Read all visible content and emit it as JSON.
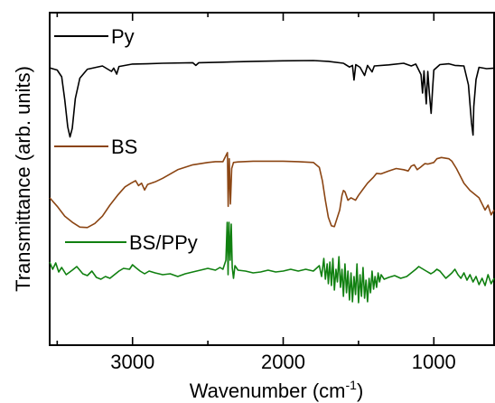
{
  "chart_data": {
    "type": "line",
    "xlabel": "Wavenumber (cm",
    "xlabel_sup": "-1",
    "xlabel_tail": ")",
    "ylabel": "Transmittance (arb. units)",
    "xlim": [
      3550,
      600
    ],
    "x_reversed": true,
    "x_ticks": [
      3000,
      2000,
      1000
    ],
    "x_tick_labels": [
      "3000",
      "2000",
      "1000"
    ],
    "y_ticks": "none (arbitrary units)",
    "grid": false,
    "legend_placement": "inline labels near each trace (left side)",
    "series": [
      {
        "name": "Py",
        "color": "#000000",
        "points": [
          [
            3550,
            0.37
          ],
          [
            3500,
            0.45
          ],
          [
            3470,
            0.7
          ],
          [
            3450,
            1.55
          ],
          [
            3430,
            2.55
          ],
          [
            3415,
            2.92
          ],
          [
            3400,
            2.6
          ],
          [
            3380,
            1.5
          ],
          [
            3350,
            0.75
          ],
          [
            3300,
            0.42
          ],
          [
            3200,
            0.3
          ],
          [
            3140,
            0.5
          ],
          [
            3125,
            0.38
          ],
          [
            3105,
            0.6
          ],
          [
            3090,
            0.32
          ],
          [
            3000,
            0.23
          ],
          [
            2900,
            0.22
          ],
          [
            2800,
            0.2
          ],
          [
            2600,
            0.18
          ],
          [
            2580,
            0.28
          ],
          [
            2560,
            0.18
          ],
          [
            2400,
            0.16
          ],
          [
            2200,
            0.13
          ],
          [
            2000,
            0.11
          ],
          [
            1800,
            0.1
          ],
          [
            1700,
            0.13
          ],
          [
            1600,
            0.2
          ],
          [
            1560,
            0.34
          ],
          [
            1540,
            0.28
          ],
          [
            1530,
            0.82
          ],
          [
            1518,
            0.25
          ],
          [
            1490,
            0.35
          ],
          [
            1460,
            0.65
          ],
          [
            1440,
            0.28
          ],
          [
            1410,
            0.52
          ],
          [
            1395,
            0.3
          ],
          [
            1300,
            0.26
          ],
          [
            1200,
            0.2
          ],
          [
            1150,
            0.3
          ],
          [
            1120,
            0.23
          ],
          [
            1085,
            0.62
          ],
          [
            1075,
            1.3
          ],
          [
            1065,
            0.48
          ],
          [
            1050,
            1.7
          ],
          [
            1040,
            0.5
          ],
          [
            1030,
            1.3
          ],
          [
            1018,
            2.05
          ],
          [
            1008,
            1.1
          ],
          [
            1000,
            0.45
          ],
          [
            960,
            0.25
          ],
          [
            900,
            0.22
          ],
          [
            860,
            0.28
          ],
          [
            800,
            0.3
          ],
          [
            770,
            1.0
          ],
          [
            750,
            2.4
          ],
          [
            740,
            2.85
          ],
          [
            735,
            1.8
          ],
          [
            720,
            0.8
          ],
          [
            700,
            0.35
          ],
          [
            650,
            0.4
          ],
          [
            600,
            0.38
          ]
        ]
      },
      {
        "name": "BS",
        "color": "#8b4513",
        "points": [
          [
            3550,
            1.7
          ],
          [
            3500,
            2.05
          ],
          [
            3450,
            2.45
          ],
          [
            3400,
            2.7
          ],
          [
            3350,
            2.9
          ],
          [
            3300,
            2.92
          ],
          [
            3250,
            2.75
          ],
          [
            3200,
            2.45
          ],
          [
            3150,
            2.0
          ],
          [
            3100,
            1.6
          ],
          [
            3050,
            1.25
          ],
          [
            3010,
            1.1
          ],
          [
            2980,
            1.0
          ],
          [
            2960,
            1.2
          ],
          [
            2940,
            1.1
          ],
          [
            2920,
            1.38
          ],
          [
            2900,
            1.15
          ],
          [
            2850,
            1.05
          ],
          [
            2800,
            0.9
          ],
          [
            2700,
            0.55
          ],
          [
            2600,
            0.35
          ],
          [
            2500,
            0.25
          ],
          [
            2450,
            0.22
          ],
          [
            2400,
            0.22
          ],
          [
            2370,
            -0.15
          ],
          [
            2365,
            2.05
          ],
          [
            2358,
            0.1
          ],
          [
            2350,
            1.95
          ],
          [
            2342,
            0.5
          ],
          [
            2330,
            0.25
          ],
          [
            2300,
            0.23
          ],
          [
            2200,
            0.2
          ],
          [
            2100,
            0.2
          ],
          [
            2000,
            0.2
          ],
          [
            1900,
            0.22
          ],
          [
            1800,
            0.25
          ],
          [
            1760,
            0.45
          ],
          [
            1740,
            1.0
          ],
          [
            1720,
            1.8
          ],
          [
            1700,
            2.5
          ],
          [
            1680,
            2.85
          ],
          [
            1660,
            2.88
          ],
          [
            1640,
            2.5
          ],
          [
            1625,
            2.2
          ],
          [
            1610,
            1.6
          ],
          [
            1600,
            1.4
          ],
          [
            1590,
            1.45
          ],
          [
            1570,
            1.8
          ],
          [
            1550,
            1.7
          ],
          [
            1520,
            1.8
          ],
          [
            1500,
            1.6
          ],
          [
            1470,
            1.35
          ],
          [
            1440,
            1.1
          ],
          [
            1400,
            0.85
          ],
          [
            1380,
            0.7
          ],
          [
            1350,
            0.72
          ],
          [
            1300,
            0.6
          ],
          [
            1250,
            0.5
          ],
          [
            1200,
            0.55
          ],
          [
            1170,
            0.6
          ],
          [
            1150,
            0.4
          ],
          [
            1130,
            0.35
          ],
          [
            1110,
            0.55
          ],
          [
            1090,
            0.45
          ],
          [
            1060,
            0.3
          ],
          [
            1040,
            0.32
          ],
          [
            1000,
            0.25
          ],
          [
            980,
            0.1
          ],
          [
            950,
            0.05
          ],
          [
            900,
            0.1
          ],
          [
            880,
            0.2
          ],
          [
            850,
            0.5
          ],
          [
            800,
            1.1
          ],
          [
            760,
            1.4
          ],
          [
            740,
            1.5
          ],
          [
            700,
            1.7
          ],
          [
            680,
            1.95
          ],
          [
            660,
            2.2
          ],
          [
            640,
            2.0
          ],
          [
            620,
            2.4
          ],
          [
            600,
            2.2
          ]
        ]
      },
      {
        "name": "BS/PPy",
        "color": "#108010",
        "points": [
          [
            3550,
            0.5
          ],
          [
            3530,
            0.9
          ],
          [
            3510,
            0.55
          ],
          [
            3490,
            1.05
          ],
          [
            3470,
            0.8
          ],
          [
            3440,
            1.2
          ],
          [
            3400,
            0.95
          ],
          [
            3370,
            0.75
          ],
          [
            3330,
            1.15
          ],
          [
            3300,
            1.25
          ],
          [
            3270,
            1.0
          ],
          [
            3240,
            1.35
          ],
          [
            3210,
            1.45
          ],
          [
            3180,
            1.3
          ],
          [
            3150,
            1.4
          ],
          [
            3120,
            1.2
          ],
          [
            3090,
            1.0
          ],
          [
            3060,
            0.85
          ],
          [
            3020,
            0.9
          ],
          [
            3000,
            0.65
          ],
          [
            2980,
            0.8
          ],
          [
            2950,
            1.0
          ],
          [
            2920,
            1.15
          ],
          [
            2890,
            1.0
          ],
          [
            2850,
            1.1
          ],
          [
            2800,
            1.2
          ],
          [
            2750,
            1.15
          ],
          [
            2700,
            1.3
          ],
          [
            2650,
            1.15
          ],
          [
            2600,
            1.05
          ],
          [
            2550,
            0.95
          ],
          [
            2500,
            0.85
          ],
          [
            2450,
            0.95
          ],
          [
            2420,
            0.8
          ],
          [
            2400,
            0.9
          ],
          [
            2380,
            0.4
          ],
          [
            2372,
            -1.7
          ],
          [
            2366,
            1.2
          ],
          [
            2360,
            -1.7
          ],
          [
            2352,
            0.4
          ],
          [
            2345,
            -1.6
          ],
          [
            2338,
            0.8
          ],
          [
            2330,
            1.4
          ],
          [
            2320,
            0.7
          ],
          [
            2300,
            0.95
          ],
          [
            2250,
            1.0
          ],
          [
            2200,
            1.1
          ],
          [
            2150,
            1.05
          ],
          [
            2100,
            0.95
          ],
          [
            2050,
            1.05
          ],
          [
            2000,
            1.0
          ],
          [
            1950,
            0.9
          ],
          [
            1900,
            1.0
          ],
          [
            1850,
            0.9
          ],
          [
            1800,
            1.0
          ],
          [
            1760,
            0.7
          ],
          [
            1745,
            1.3
          ],
          [
            1730,
            0.3
          ],
          [
            1720,
            1.45
          ],
          [
            1708,
            0.6
          ],
          [
            1700,
            1.7
          ],
          [
            1690,
            0.5
          ],
          [
            1680,
            1.8
          ],
          [
            1670,
            0.3
          ],
          [
            1660,
            2.05
          ],
          [
            1650,
            0.9
          ],
          [
            1640,
            1.6
          ],
          [
            1630,
            0.2
          ],
          [
            1620,
            1.9
          ],
          [
            1610,
            0.9
          ],
          [
            1600,
            2.4
          ],
          [
            1590,
            0.6
          ],
          [
            1580,
            2.2
          ],
          [
            1570,
            1.0
          ],
          [
            1560,
            2.6
          ],
          [
            1550,
            1.1
          ],
          [
            1540,
            2.7
          ],
          [
            1530,
            1.3
          ],
          [
            1520,
            2.3
          ],
          [
            1510,
            0.6
          ],
          [
            1500,
            2.75
          ],
          [
            1490,
            1.2
          ],
          [
            1480,
            2.4
          ],
          [
            1470,
            0.8
          ],
          [
            1460,
            2.5
          ],
          [
            1450,
            1.5
          ],
          [
            1440,
            2.7
          ],
          [
            1430,
            1.4
          ],
          [
            1420,
            2.2
          ],
          [
            1410,
            1.0
          ],
          [
            1400,
            2.0
          ],
          [
            1390,
            1.3
          ],
          [
            1380,
            1.9
          ],
          [
            1370,
            1.1
          ],
          [
            1360,
            1.6
          ],
          [
            1350,
            1.2
          ],
          [
            1330,
            1.45
          ],
          [
            1300,
            1.35
          ],
          [
            1260,
            1.25
          ],
          [
            1220,
            1.4
          ],
          [
            1180,
            1.3
          ],
          [
            1150,
            1.1
          ],
          [
            1120,
            0.9
          ],
          [
            1100,
            0.75
          ],
          [
            1080,
            0.85
          ],
          [
            1050,
            1.0
          ],
          [
            1020,
            1.15
          ],
          [
            1000,
            1.05
          ],
          [
            980,
            0.9
          ],
          [
            960,
            1.0
          ],
          [
            940,
            1.2
          ],
          [
            920,
            1.4
          ],
          [
            900,
            1.25
          ],
          [
            880,
            1.1
          ],
          [
            860,
            0.9
          ],
          [
            840,
            1.2
          ],
          [
            820,
            1.4
          ],
          [
            800,
            1.1
          ],
          [
            780,
            1.5
          ],
          [
            760,
            1.2
          ],
          [
            740,
            1.6
          ],
          [
            720,
            1.3
          ],
          [
            700,
            1.75
          ],
          [
            680,
            1.4
          ],
          [
            660,
            1.8
          ],
          [
            640,
            1.2
          ],
          [
            620,
            1.7
          ],
          [
            600,
            1.4
          ]
        ]
      }
    ]
  }
}
